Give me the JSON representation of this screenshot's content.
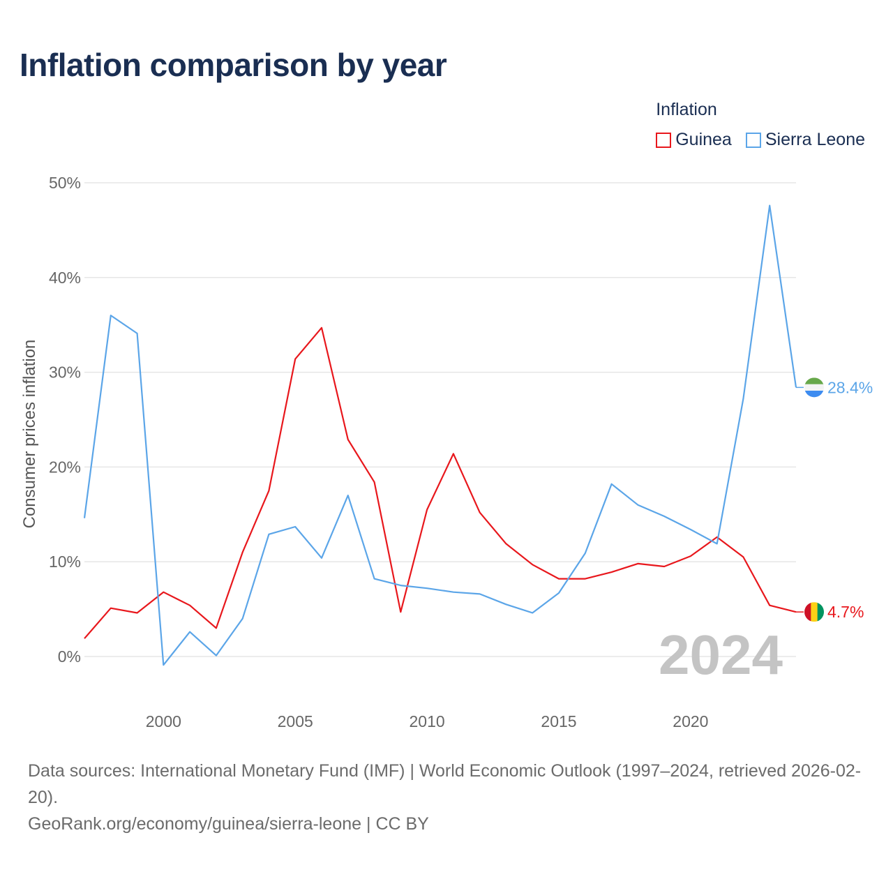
{
  "title": "Inflation comparison by year",
  "legend": {
    "title": "Inflation",
    "items": [
      {
        "name": "Guinea",
        "color": "#e8171c"
      },
      {
        "name": "Sierra Leone",
        "color": "#5ba5e8"
      }
    ]
  },
  "chart_data": {
    "type": "line",
    "title": "Inflation comparison by year",
    "xlabel": "",
    "ylabel": "Consumer prices inflation",
    "xlim": [
      1997,
      2024
    ],
    "ylim": [
      -5,
      52
    ],
    "y_ticks": [
      0,
      10,
      20,
      30,
      40,
      50
    ],
    "y_tick_labels": [
      "0%",
      "10%",
      "20%",
      "30%",
      "40%",
      "50%"
    ],
    "x_ticks": [
      2000,
      2005,
      2010,
      2015,
      2020
    ],
    "x_tick_labels": [
      "2000",
      "2005",
      "2010",
      "2015",
      "2020"
    ],
    "grid": true,
    "year_watermark": "2024",
    "x": [
      1997,
      1998,
      1999,
      2000,
      2001,
      2002,
      2003,
      2004,
      2005,
      2006,
      2007,
      2008,
      2009,
      2010,
      2011,
      2012,
      2013,
      2014,
      2015,
      2016,
      2017,
      2018,
      2019,
      2020,
      2021,
      2022,
      2023,
      2024
    ],
    "series": [
      {
        "name": "Guinea",
        "color": "#e8171c",
        "end_label": "4.7%",
        "flag": "guinea",
        "values": [
          1.9,
          5.1,
          4.6,
          6.8,
          5.4,
          3.0,
          11.0,
          17.5,
          31.4,
          34.7,
          22.9,
          18.4,
          4.7,
          15.5,
          21.4,
          15.2,
          11.9,
          9.7,
          8.2,
          8.2,
          8.9,
          9.8,
          9.5,
          10.6,
          12.6,
          10.5,
          5.4,
          4.7
        ]
      },
      {
        "name": "Sierra Leone",
        "color": "#5ba5e8",
        "end_label": "28.4%",
        "flag": "sierra-leone",
        "values": [
          14.6,
          36.0,
          34.1,
          -0.9,
          2.6,
          0.1,
          4.0,
          12.9,
          13.7,
          10.4,
          17.0,
          8.2,
          7.5,
          7.2,
          6.8,
          6.6,
          5.5,
          4.6,
          6.7,
          10.9,
          18.2,
          16.0,
          14.8,
          13.4,
          11.9,
          27.2,
          47.6,
          28.4
        ]
      }
    ]
  },
  "footer": {
    "sources": "Data sources: International Monetary Fund (IMF) | World Economic Outlook (1997–2024, retrieved 2026-02-20).",
    "credit": "GeoRank.org/economy/guinea/sierra-leone | CC BY"
  }
}
